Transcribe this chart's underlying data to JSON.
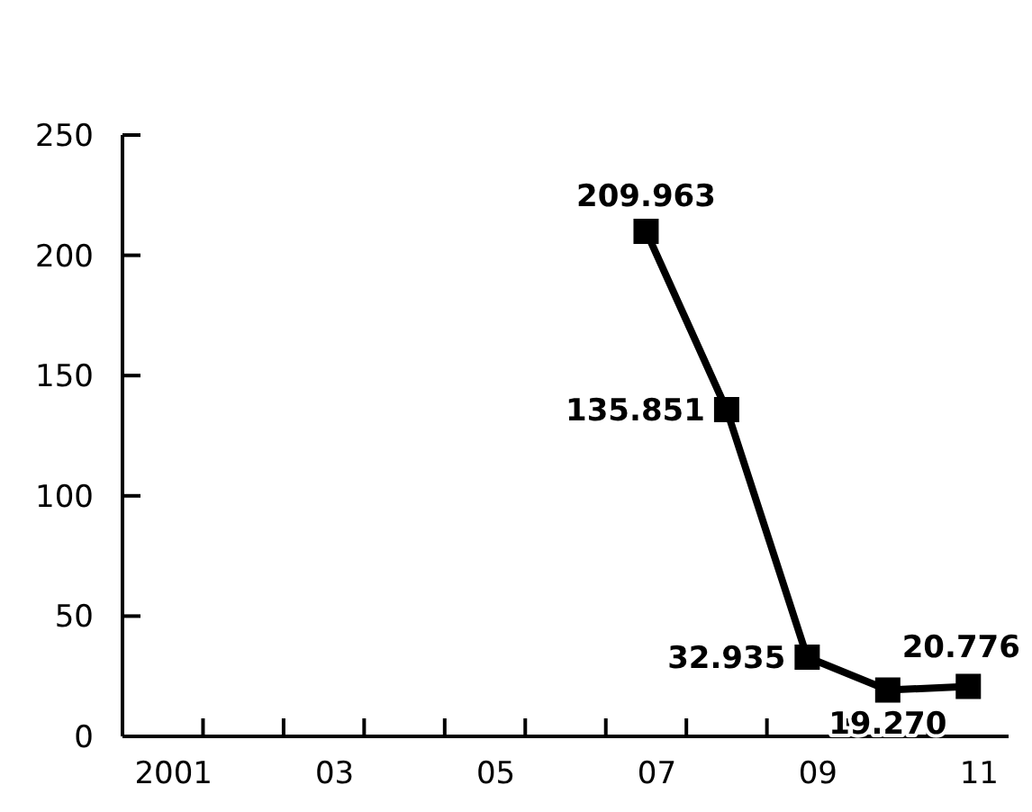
{
  "chart_data": {
    "type": "line",
    "categories": [
      "2001",
      null,
      "03",
      null,
      "05",
      null,
      "07",
      null,
      "09",
      null,
      "11"
    ],
    "values": [
      null,
      null,
      null,
      null,
      null,
      null,
      209.963,
      135.851,
      32.935,
      19.27,
      20.776
    ],
    "value_labels": [
      null,
      null,
      null,
      null,
      null,
      null,
      "209.963",
      "135.851",
      "32.935",
      "19.270",
      "20.776"
    ],
    "color": "#000000",
    "marker": "square",
    "line_style": "solid",
    "ylim": [
      0,
      250
    ],
    "yticks": [
      0,
      50,
      100,
      150,
      200,
      250
    ],
    "grid": false
  }
}
